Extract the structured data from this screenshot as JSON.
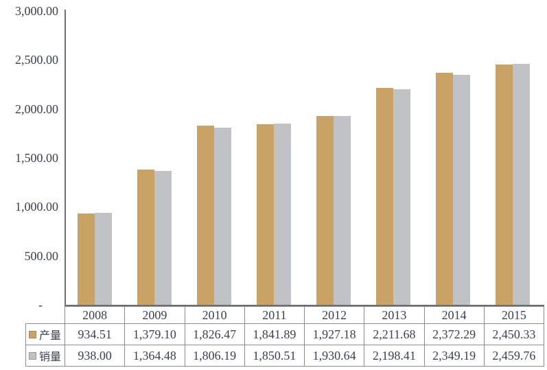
{
  "chart_data": {
    "type": "bar",
    "title": "",
    "xlabel": "",
    "ylabel": "",
    "categories": [
      "2008",
      "2009",
      "2010",
      "2011",
      "2012",
      "2013",
      "2014",
      "2015"
    ],
    "series": [
      {
        "key": "production",
        "name": "产量",
        "color": "#C9A365",
        "values": [
          934.51,
          1379.1,
          1826.47,
          1841.89,
          1927.18,
          2211.68,
          2372.29,
          2450.33
        ],
        "formatted": [
          "934.51",
          "1,379.10",
          "1,826.47",
          "1,841.89",
          "1,927.18",
          "2,211.68",
          "2,372.29",
          "2,450.33"
        ]
      },
      {
        "key": "sales",
        "name": "销量",
        "color": "#C0C2C6",
        "values": [
          938.0,
          1364.48,
          1806.19,
          1850.51,
          1930.64,
          2198.41,
          2349.19,
          2459.76
        ],
        "formatted": [
          "938.00",
          "1,364.48",
          "1,806.19",
          "1,850.51",
          "1,930.64",
          "2,198.41",
          "2,349.19",
          "2,459.76"
        ]
      }
    ],
    "ylim": [
      0,
      3000
    ],
    "yticks": [
      {
        "label": "3,000.00",
        "value": 3000
      },
      {
        "label": "2,500.00",
        "value": 2500
      },
      {
        "label": "2,000.00",
        "value": 2000
      },
      {
        "label": "1,500.00",
        "value": 1500
      },
      {
        "label": "1,000.00",
        "value": 1000
      },
      {
        "label": "500.00",
        "value": 500
      },
      {
        "label": "-",
        "value": 0
      }
    ],
    "grid": false,
    "legend_position": "data-table-left"
  },
  "colors": {
    "axis": "#6E6E6E",
    "table_border": "#8C8C8C",
    "text": "#3A4150",
    "background": "#FFFFFF"
  }
}
